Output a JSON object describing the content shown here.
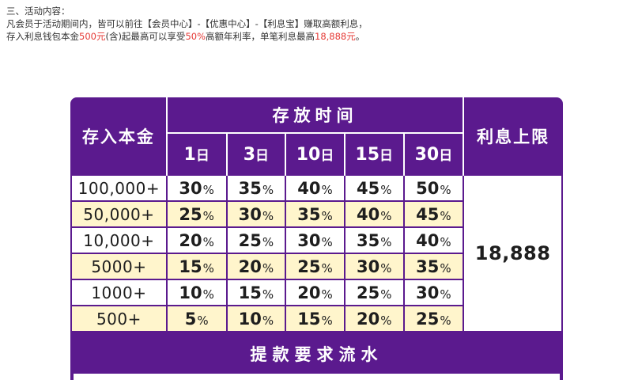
{
  "intro": {
    "heading": "三、活动内容：",
    "line1": "凡会员于活动期间内，皆可以前往【会员中心】-【优惠中心】-【利息宝】赚取高额利息，",
    "line2": {
      "a": "存入利息钱包本金",
      "b": "500元",
      "c": "(含)起最高可以享受",
      "d": "50%",
      "e": "高额年利率，单笔利息最高",
      "f": "18,888元",
      "g": "。"
    }
  },
  "table": {
    "principal_header": "存入本金",
    "period_header": "存放时间",
    "cap_header": "利息上限",
    "day_unit": "日",
    "pct_unit": "%",
    "days": [
      "1",
      "3",
      "10",
      "15",
      "30"
    ],
    "rows": [
      {
        "amount": "100,000+",
        "rates": [
          "30",
          "35",
          "40",
          "45",
          "50"
        ]
      },
      {
        "amount": "50,000+",
        "rates": [
          "25",
          "30",
          "35",
          "40",
          "45"
        ]
      },
      {
        "amount": "10,000+",
        "rates": [
          "20",
          "25",
          "30",
          "35",
          "40"
        ]
      },
      {
        "amount": "5000+",
        "rates": [
          "15",
          "20",
          "25",
          "30",
          "35"
        ]
      },
      {
        "amount": "1000+",
        "rates": [
          "10",
          "15",
          "20",
          "25",
          "30"
        ]
      },
      {
        "amount": "500+",
        "rates": [
          "5",
          "10",
          "15",
          "20",
          "25"
        ]
      }
    ],
    "cap_value": "18,888",
    "turnover_header": "提款要求流水"
  },
  "colors": {
    "panel_purple": "#5b1a8e",
    "row_highlight": "#fff5cc",
    "accent_red": "#e53935"
  }
}
